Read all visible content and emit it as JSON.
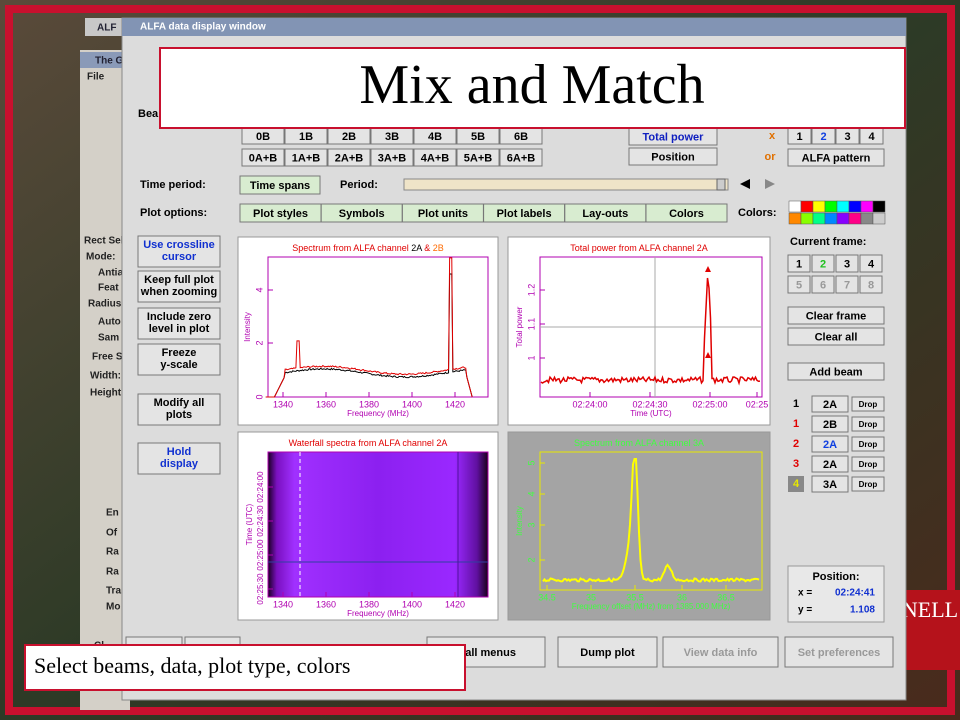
{
  "window_title": "ALFA data display window",
  "slide": {
    "title": "Mix and Match",
    "caption": "Select beams, data, plot type, colors",
    "logo_text": "NELL"
  },
  "background": {
    "texts": [
      "ALF",
      "The G",
      "File",
      "Rect Sele",
      "Mode:",
      "Antial",
      "Feat",
      "Radius:",
      "Auto",
      "Sam",
      "Free S",
      "Width:",
      "Height:",
      "En",
      "Of",
      "Ra",
      "Ra",
      "Tra",
      "Mo",
      "Cl"
    ]
  },
  "beams": {
    "label": "Bea",
    "row1": [
      "0B",
      "1B",
      "2B",
      "3B",
      "4B",
      "5B",
      "6B"
    ],
    "row2": [
      "0A+B",
      "1A+B",
      "2A+B",
      "3A+B",
      "4A+B",
      "5A+B",
      "6A+B"
    ]
  },
  "data_buttons": [
    "Total power",
    "Position"
  ],
  "x_label": "x",
  "or_label": "or",
  "frame_buttons": [
    "1",
    "2",
    "3",
    "4"
  ],
  "alfa_pattern": "ALFA pattern",
  "time": {
    "label": "Time period:",
    "button": "Time spans",
    "period_label": "Period:"
  },
  "plot_options": {
    "label": "Plot options:",
    "tabs": [
      "Plot styles",
      "Symbols",
      "Plot units",
      "Plot labels",
      "Lay-outs",
      "Colors"
    ],
    "colors_label": "Colors:"
  },
  "left_buttons": [
    [
      "Use crossline",
      "cursor"
    ],
    [
      "Keep full plot",
      "when zooming"
    ],
    [
      "Include zero",
      "level in plot"
    ],
    [
      "Freeze",
      "y-scale"
    ],
    [
      "Modify all",
      "plots"
    ],
    [
      "Hold",
      "display"
    ]
  ],
  "current_frame": {
    "label": "Current frame:",
    "buttons": [
      "1",
      "2",
      "3",
      "4",
      "5",
      "6",
      "7",
      "8"
    ]
  },
  "actions": [
    "Clear frame",
    "Clear all",
    "Add beam"
  ],
  "beam_list": [
    {
      "frame": "1",
      "beam": "2A",
      "drop": "Drop"
    },
    {
      "frame": "1",
      "beam": "2B",
      "drop": "Drop"
    },
    {
      "frame": "2",
      "beam": "2A",
      "drop": "Drop"
    },
    {
      "frame": "3",
      "beam": "2A",
      "drop": "Drop"
    },
    {
      "frame": "4",
      "beam": "3A",
      "drop": "Drop"
    }
  ],
  "position": {
    "label": "Position:",
    "x_label": "x =",
    "x": "02:24:41",
    "y_label": "y =",
    "y": "1.108"
  },
  "bottom_buttons": [
    "e all menus",
    "Dump plot",
    "View data info",
    "Set preferences"
  ],
  "plots": [
    {
      "title": [
        "Spectrum from ALFA channel ",
        "2A",
        " & ",
        "2B"
      ],
      "xlabel": "Frequency (MHz)",
      "ylabel": "Intensity",
      "xticks": [
        "1340",
        "1360",
        "1380",
        "1400",
        "1420"
      ],
      "yticks": [
        "0",
        "2",
        "4"
      ]
    },
    {
      "title": [
        "Total power from ALFA channel 2A"
      ],
      "xlabel": "Time (UTC)",
      "ylabel": "Total power",
      "xticks": [
        "02:24:00",
        "02:24:30",
        "02:25:00",
        "02:25"
      ],
      "yticks": [
        "1",
        "1.1",
        "1.2"
      ]
    },
    {
      "title": [
        "Waterfall spectra from ALFA channel 2A"
      ],
      "xlabel": "Frequency (MHz)",
      "ylabel": "Time (UTC)",
      "xticks": [
        "1340",
        "1360",
        "1380",
        "1400",
        "1420"
      ],
      "yticks": [
        "02:25:30",
        "02:25:00",
        "02:24:30",
        "02:24:00"
      ]
    },
    {
      "title": [
        "Spectrum from ALFA channel 3A"
      ],
      "xlabel": "Frequency offset (MHz) from 1385.000 MHz)",
      "ylabel": "Intensity",
      "xticks": [
        "34.5",
        "35",
        "35.5",
        "36",
        "36.5"
      ],
      "yticks": [
        "2",
        "3",
        "4",
        "5"
      ]
    }
  ]
}
